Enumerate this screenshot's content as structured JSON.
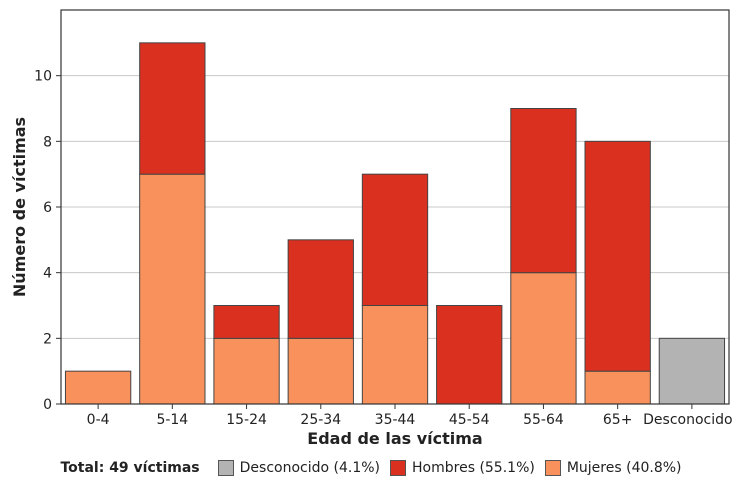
{
  "chart_data": {
    "type": "bar",
    "stacked": true,
    "xlabel": "Edad de las víctima",
    "ylabel": "Número de víctimas",
    "ylim": [
      0,
      12
    ],
    "yticks": [
      0,
      2,
      4,
      6,
      8,
      10
    ],
    "grid": true,
    "categories": [
      "0-4",
      "5-14",
      "15-24",
      "25-34",
      "35-44",
      "45-54",
      "55-64",
      "65+",
      "Desconocido"
    ],
    "series": [
      {
        "name": "Mujeres (40.8%)",
        "color": "#f9915c",
        "values": [
          1,
          7,
          2,
          2,
          3,
          0,
          4,
          1,
          0
        ]
      },
      {
        "name": "Hombres (55.1%)",
        "color": "#d93020",
        "values": [
          0,
          4,
          1,
          3,
          4,
          3,
          5,
          7,
          0
        ]
      },
      {
        "name": "Desconocido (4.1%)",
        "color": "#b3b3b3",
        "values": [
          0,
          0,
          0,
          0,
          0,
          0,
          0,
          0,
          2
        ]
      }
    ],
    "legend_position": "bottom"
  },
  "legend": {
    "total": "Total: 49 víctimas",
    "items": [
      {
        "label": "Desconocido (4.1%)",
        "color": "#b3b3b3"
      },
      {
        "label": "Hombres (55.1%)",
        "color": "#d93020"
      },
      {
        "label": "Mujeres (40.8%)",
        "color": "#f9915c"
      }
    ]
  }
}
